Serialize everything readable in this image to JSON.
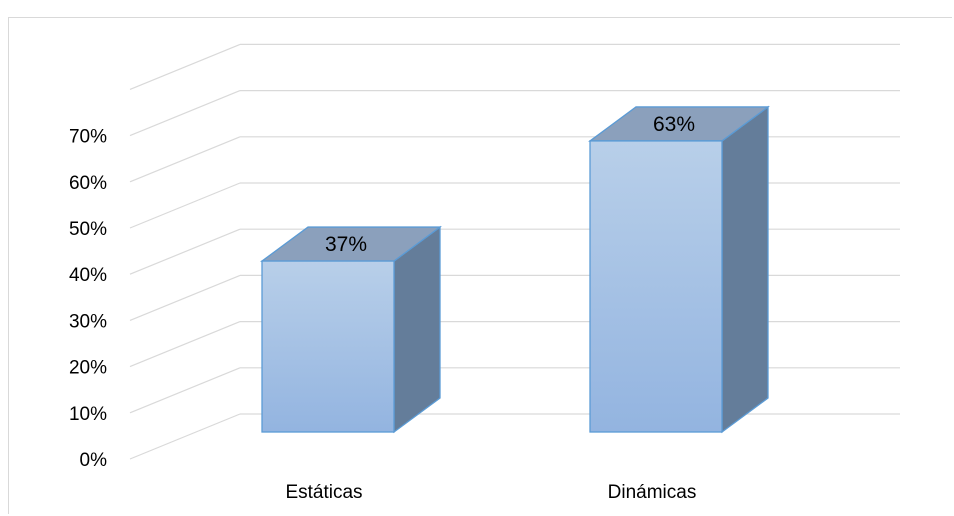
{
  "chart_data": {
    "type": "bar",
    "style": "3d-column",
    "categories": [
      "Estáticas",
      "Dinámicas"
    ],
    "values": [
      37,
      63
    ],
    "data_labels": [
      "37%",
      "63%"
    ],
    "yticks": [
      "0%",
      "10%",
      "20%",
      "30%",
      "40%",
      "50%",
      "60%",
      "70%"
    ],
    "ylim": [
      0,
      70
    ],
    "grid": true,
    "legend": "none",
    "colors": {
      "bar_front_top": "#b8cfe9",
      "bar_front_bottom": "#93b4e0",
      "bar_top": "#8ba0bc",
      "bar_side": "#647d9a",
      "bar_edge": "#5b9bd5",
      "grid": "#d9d9d9"
    }
  }
}
